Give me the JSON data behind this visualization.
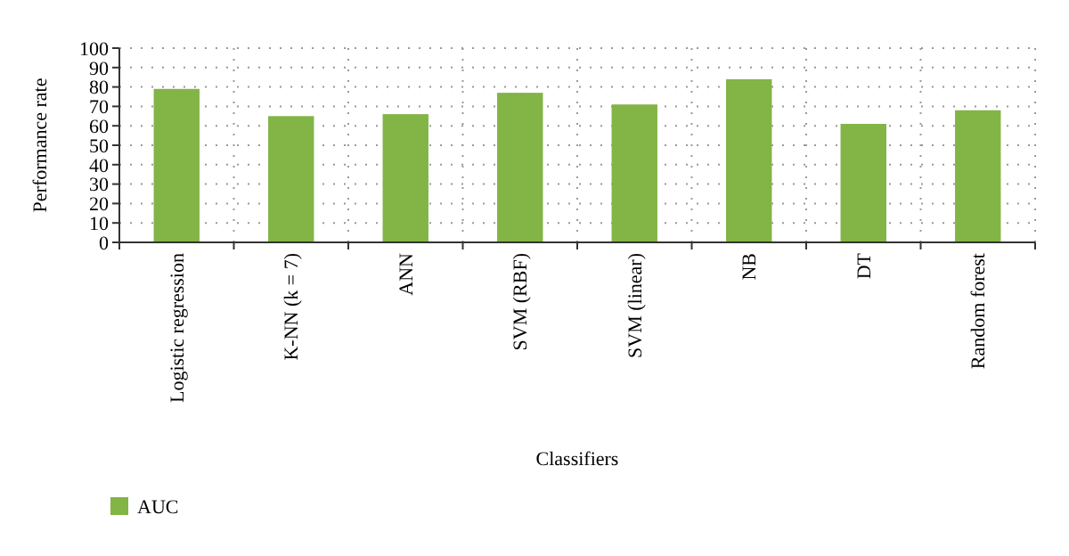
{
  "chart_data": {
    "type": "bar",
    "xlabel": "Classifiers",
    "ylabel": "Performance rate",
    "categories": [
      "Logistic regression",
      "K-NN (k = 7)",
      "ANN",
      "SVM (RBF)",
      "SVM (linear)",
      "NB",
      "DT",
      "Random forest"
    ],
    "series": [
      {
        "name": "AUC",
        "color": "#82b446",
        "values": [
          79,
          65,
          66,
          77,
          71,
          84,
          61,
          68
        ]
      }
    ],
    "ylim": [
      0,
      100
    ],
    "yticks": [
      0,
      10,
      20,
      30,
      40,
      50,
      60,
      70,
      80,
      90,
      100
    ],
    "grid": true,
    "legend": "bottom left"
  }
}
